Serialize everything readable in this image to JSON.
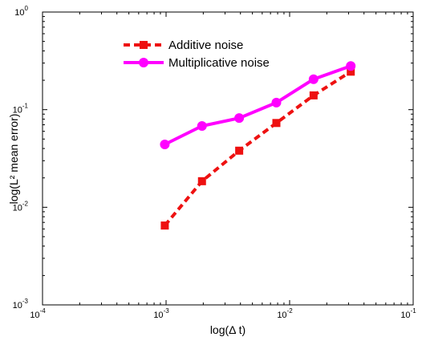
{
  "chart_data": {
    "type": "line",
    "xscale": "log",
    "yscale": "log",
    "xlim": [
      0.0001,
      0.1
    ],
    "ylim": [
      0.001,
      1
    ],
    "xlabel": "log(Δ t)",
    "ylabel": "log(L² mean error)",
    "xticks": [
      {
        "base": "10",
        "exp": "-4"
      },
      {
        "base": "10",
        "exp": "-3"
      },
      {
        "base": "10",
        "exp": "-2"
      },
      {
        "base": "10",
        "exp": "-1"
      }
    ],
    "yticks": [
      {
        "base": "10",
        "exp": "-3"
      },
      {
        "base": "10",
        "exp": "-2"
      },
      {
        "base": "10",
        "exp": "-1"
      },
      {
        "base": "10",
        "exp": "0"
      }
    ],
    "legend_position": "top-left",
    "series": [
      {
        "name": "Additive noise",
        "color": "#ee1111",
        "line_style": "dashed",
        "marker": "square",
        "x": [
          0.0009766,
          0.001953,
          0.003906,
          0.007813,
          0.015625,
          0.03125
        ],
        "y": [
          0.0065,
          0.0185,
          0.038,
          0.073,
          0.14,
          0.245
        ]
      },
      {
        "name": "Multiplicative noise",
        "color": "#ff00ff",
        "line_style": "solid",
        "marker": "circle",
        "x": [
          0.0009766,
          0.001953,
          0.003906,
          0.007813,
          0.015625,
          0.03125
        ],
        "y": [
          0.044,
          0.068,
          0.082,
          0.118,
          0.205,
          0.28
        ]
      }
    ]
  }
}
